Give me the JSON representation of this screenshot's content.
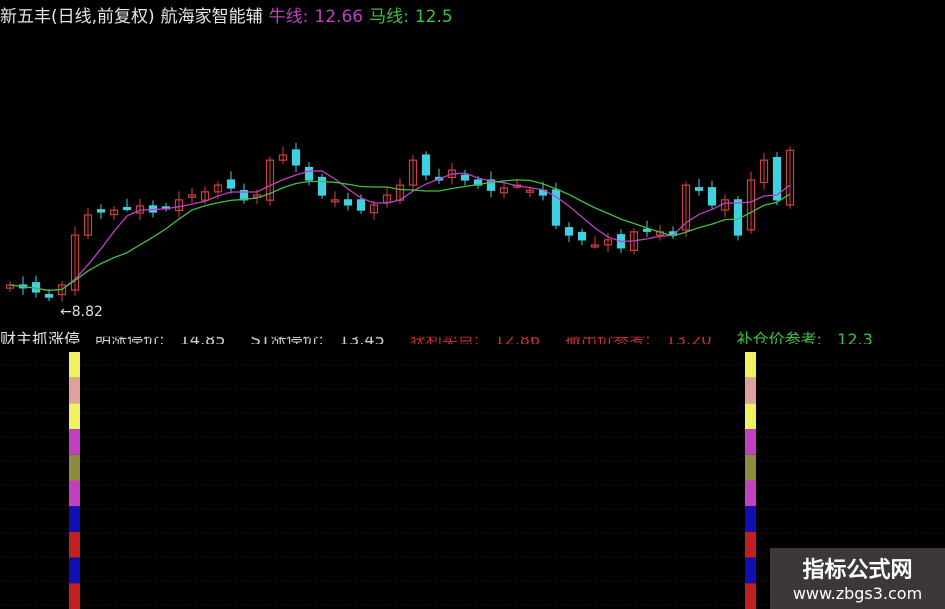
{
  "header": {
    "title": "新五丰(日线,前复权)",
    "indicator": "航海家智能辅",
    "ma1_label": "牛线:",
    "ma1_value": "12.66",
    "ma2_label": "马线:",
    "ma2_value": "12.5"
  },
  "lower_panel": {
    "name": "财主抓涨停",
    "items": [
      {
        "label": "明涨停价:",
        "value": "14.85"
      },
      {
        "label": "ST涨停价:",
        "value": "13.45"
      },
      {
        "label": "获利卖点:",
        "value": "12.86"
      },
      {
        "label": "撤出价参考:",
        "value": "13.20"
      },
      {
        "label": "补仓价参考:",
        "value": "12.3"
      }
    ],
    "signal_colors": [
      "#f0f060",
      "#e0a0a0",
      "#f0f060",
      "#c040c0",
      "#8c8c40",
      "#c040c0",
      "#1010b0",
      "#c02020",
      "#1010b0",
      "#c02020"
    ]
  },
  "watermark": {
    "title": "指标公式网",
    "url": "www.zbgs3.com"
  },
  "chart_data": {
    "type": "candlestick",
    "low_annotation": "←8.82",
    "up_color": "#d04040",
    "down_color": "#40d0e0",
    "ma1_color": "#c040c0",
    "ma2_color": "#40c040",
    "closes": [
      9.54,
      9.45,
      9.32,
      9.16,
      9.54,
      11.1,
      11.73,
      11.82,
      11.88,
      11.95,
      12.01,
      11.82,
      11.95,
      12.2,
      12.35,
      12.45,
      12.66,
      12.57,
      12.2,
      12.35,
      13.44,
      13.6,
      13.29,
      12.82,
      12.35,
      12.2,
      12.04,
      11.88,
      12.04,
      12.35,
      12.66,
      13.44,
      12.98,
      12.82,
      13.13,
      12.82,
      12.66,
      12.5,
      12.57,
      12.66,
      12.5,
      12.35,
      11.41,
      11.1,
      10.95,
      10.79,
      10.95,
      10.7,
      11.2,
      11.26,
      11.2,
      11.1,
      12.66,
      12.5,
      12.04,
      12.2,
      11.1,
      12.82,
      13.44,
      12.2,
      13.75
    ],
    "signal_candle_indices": [
      5,
      57
    ]
  }
}
